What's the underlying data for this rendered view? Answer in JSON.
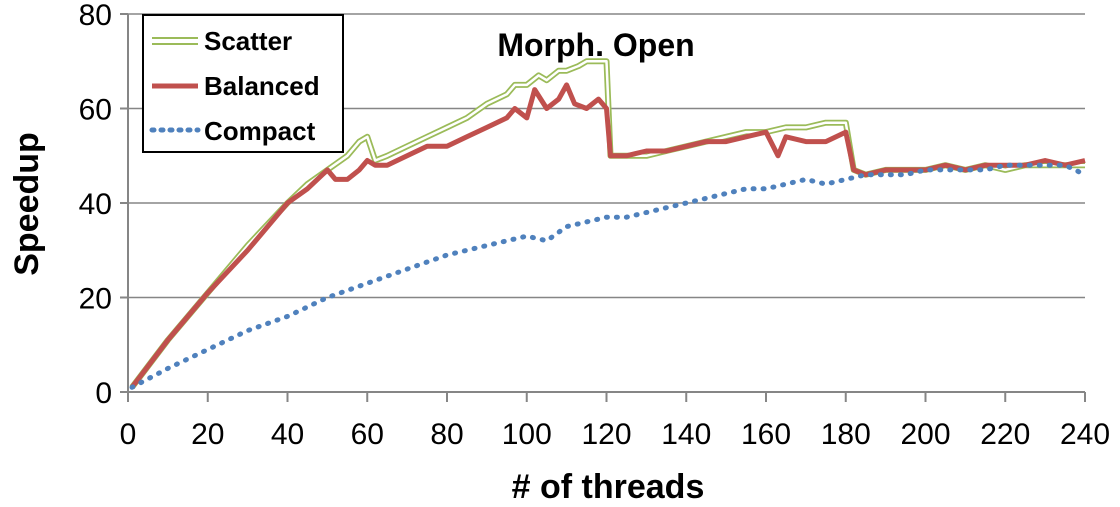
{
  "chart_data": {
    "type": "line",
    "title": "Morph. Open",
    "xlabel": "# of threads",
    "ylabel": "Speedup",
    "xlim": [
      0,
      240
    ],
    "ylim": [
      0,
      80
    ],
    "x_ticks": [
      0,
      20,
      40,
      60,
      80,
      100,
      120,
      140,
      160,
      180,
      200,
      220,
      240
    ],
    "y_ticks": [
      0,
      20,
      40,
      60,
      80
    ],
    "grid": {
      "horizontal": true,
      "vertical": false
    },
    "legend": {
      "position": "top-left",
      "boxed": true
    },
    "series": [
      {
        "name": "Scatter",
        "color": "#9bbb59",
        "style": "double",
        "x": [
          1,
          10,
          20,
          30,
          40,
          45,
          50,
          55,
          58,
          60,
          62,
          65,
          70,
          75,
          80,
          85,
          90,
          95,
          97,
          100,
          103,
          105,
          108,
          110,
          113,
          115,
          118,
          120,
          121,
          125,
          130,
          135,
          140,
          145,
          150,
          155,
          160,
          165,
          170,
          175,
          180,
          182,
          185,
          190,
          195,
          200,
          205,
          210,
          215,
          220,
          225,
          230,
          235,
          240
        ],
        "values": [
          1,
          11,
          21,
          31,
          40,
          44,
          47,
          50,
          53,
          54,
          49,
          50,
          52,
          54,
          56,
          58,
          61,
          63,
          65,
          65,
          67,
          66,
          68,
          68,
          69,
          70,
          70,
          70,
          50,
          50,
          50,
          51,
          52,
          53,
          54,
          55,
          55,
          56,
          56,
          57,
          57,
          47,
          46,
          47,
          47,
          47,
          48,
          47,
          48,
          47,
          48,
          48,
          48,
          48
        ]
      },
      {
        "name": "Balanced",
        "color": "#c0504d",
        "style": "thick",
        "x": [
          1,
          10,
          20,
          30,
          40,
          45,
          50,
          52,
          55,
          58,
          60,
          62,
          65,
          70,
          75,
          80,
          85,
          90,
          95,
          97,
          100,
          102,
          105,
          108,
          110,
          112,
          115,
          118,
          120,
          121,
          125,
          130,
          135,
          140,
          145,
          150,
          155,
          160,
          163,
          165,
          170,
          175,
          180,
          182,
          185,
          190,
          195,
          200,
          205,
          210,
          215,
          220,
          225,
          230,
          235,
          240
        ],
        "values": [
          1,
          11,
          21,
          30,
          40,
          43,
          47,
          45,
          45,
          47,
          49,
          48,
          48,
          50,
          52,
          52,
          54,
          56,
          58,
          60,
          58,
          64,
          60,
          62,
          65,
          61,
          60,
          62,
          60,
          50,
          50,
          51,
          51,
          52,
          53,
          53,
          54,
          55,
          50,
          54,
          53,
          53,
          55,
          47,
          46,
          47,
          47,
          47,
          48,
          47,
          48,
          48,
          48,
          49,
          48,
          49
        ]
      },
      {
        "name": "Compact",
        "color": "#4f81bd",
        "style": "dotted",
        "x": [
          1,
          10,
          20,
          30,
          40,
          50,
          60,
          70,
          80,
          90,
          100,
          105,
          110,
          115,
          120,
          125,
          130,
          135,
          140,
          145,
          150,
          155,
          160,
          165,
          170,
          175,
          180,
          185,
          190,
          195,
          200,
          205,
          210,
          215,
          220,
          225,
          230,
          235,
          240
        ],
        "values": [
          1,
          5,
          9,
          13,
          16,
          20,
          23,
          26,
          29,
          31,
          33,
          32,
          35,
          36,
          37,
          37,
          38,
          39,
          40,
          41,
          42,
          43,
          43,
          44,
          45,
          44,
          45,
          46,
          46,
          46,
          47,
          47,
          47,
          47,
          48,
          48,
          48,
          48,
          46
        ]
      }
    ]
  }
}
